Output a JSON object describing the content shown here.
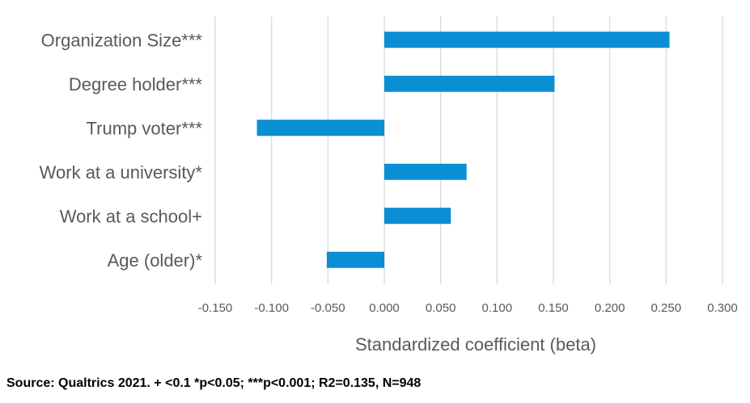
{
  "chart_data": {
    "type": "bar",
    "orientation": "horizontal",
    "categories": [
      "Organization Size***",
      "Degree holder***",
      "Trump voter***",
      "Work at a university*",
      "Work at a school+",
      "Age (older)*"
    ],
    "values": [
      0.253,
      0.151,
      -0.113,
      0.073,
      0.059,
      -0.051
    ],
    "xlabel": "Standardized coefficient (beta)",
    "xlim": [
      -0.15,
      0.3
    ],
    "ticks": [
      "-0.150",
      "-0.100",
      "-0.050",
      "0.000",
      "0.050",
      "0.100",
      "0.150",
      "0.200",
      "0.250",
      "0.300"
    ],
    "tick_values": [
      -0.15,
      -0.1,
      -0.05,
      0.0,
      0.05,
      0.1,
      0.15,
      0.2,
      0.25,
      0.3
    ],
    "grid": "vertical",
    "bar_color": "#0a8ed4",
    "grid_color": "#d9d9d9"
  },
  "footnote": "Source: Qualtrics 2021. + <0.1 *p<0.05; ***p<0.001; R2=0.135, N=948"
}
